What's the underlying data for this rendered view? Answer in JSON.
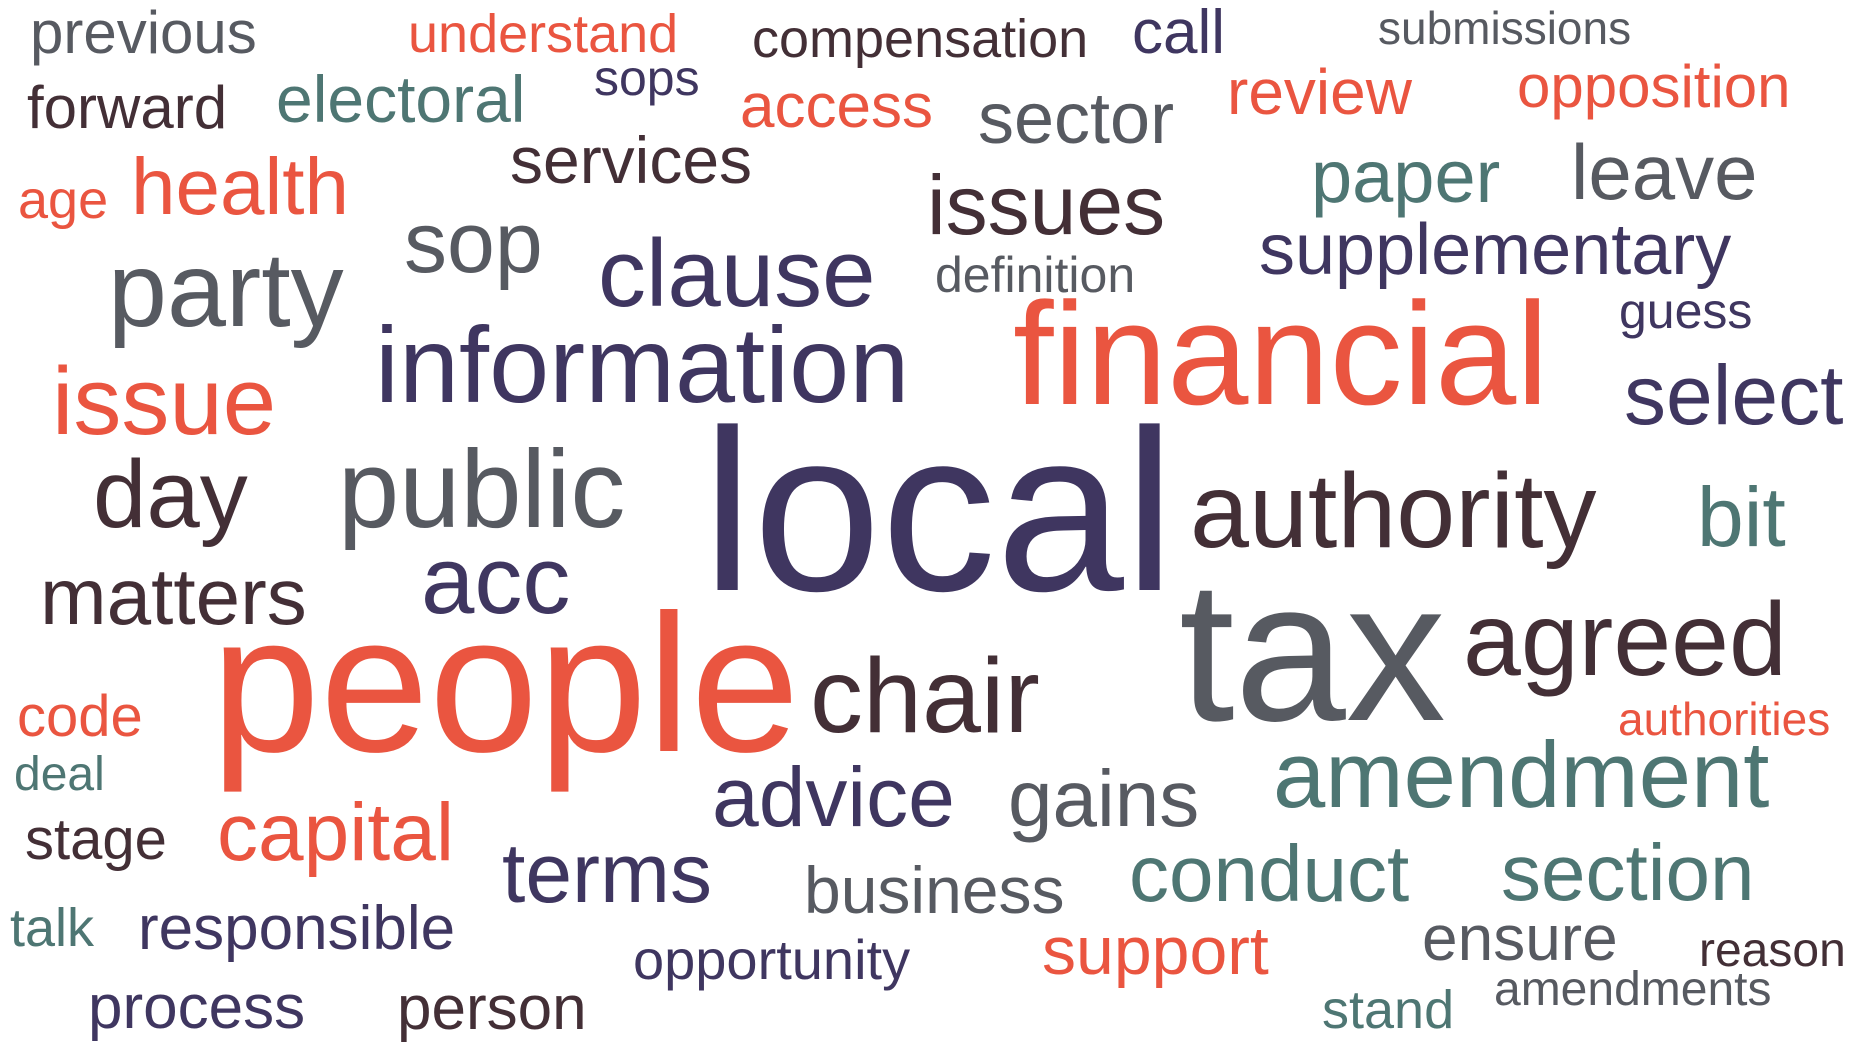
{
  "palette": {
    "coral": "#ea5540",
    "purple": "#3f3660",
    "gray": "#575a61",
    "maroon": "#432f36",
    "teal": "#4e7673"
  },
  "words": [
    {
      "text": "previous",
      "color": "gray"
    },
    {
      "text": "understand",
      "color": "coral"
    },
    {
      "text": "compensation",
      "color": "maroon"
    },
    {
      "text": "call",
      "color": "purple"
    },
    {
      "text": "submissions",
      "color": "gray"
    },
    {
      "text": "forward",
      "color": "maroon"
    },
    {
      "text": "electoral",
      "color": "teal"
    },
    {
      "text": "sops",
      "color": "purple"
    },
    {
      "text": "access",
      "color": "coral"
    },
    {
      "text": "sector",
      "color": "gray"
    },
    {
      "text": "review",
      "color": "coral"
    },
    {
      "text": "opposition",
      "color": "coral"
    },
    {
      "text": "age",
      "color": "coral"
    },
    {
      "text": "health",
      "color": "coral"
    },
    {
      "text": "services",
      "color": "maroon"
    },
    {
      "text": "issues",
      "color": "maroon"
    },
    {
      "text": "paper",
      "color": "teal"
    },
    {
      "text": "leave",
      "color": "gray"
    },
    {
      "text": "party",
      "color": "gray"
    },
    {
      "text": "sop",
      "color": "gray"
    },
    {
      "text": "clause",
      "color": "purple"
    },
    {
      "text": "definition",
      "color": "gray"
    },
    {
      "text": "supplementary",
      "color": "purple"
    },
    {
      "text": "guess",
      "color": "purple"
    },
    {
      "text": "information",
      "color": "purple"
    },
    {
      "text": "financial",
      "color": "coral"
    },
    {
      "text": "issue",
      "color": "coral"
    },
    {
      "text": "select",
      "color": "purple"
    },
    {
      "text": "day",
      "color": "maroon"
    },
    {
      "text": "public",
      "color": "gray"
    },
    {
      "text": "local",
      "color": "purple"
    },
    {
      "text": "authority",
      "color": "maroon"
    },
    {
      "text": "bit",
      "color": "teal"
    },
    {
      "text": "matters",
      "color": "maroon"
    },
    {
      "text": "acc",
      "color": "purple"
    },
    {
      "text": "tax",
      "color": "gray"
    },
    {
      "text": "agreed",
      "color": "maroon"
    },
    {
      "text": "people",
      "color": "coral"
    },
    {
      "text": "chair",
      "color": "maroon"
    },
    {
      "text": "code",
      "color": "coral"
    },
    {
      "text": "authorities",
      "color": "coral"
    },
    {
      "text": "deal",
      "color": "teal"
    },
    {
      "text": "amendment",
      "color": "teal"
    },
    {
      "text": "advice",
      "color": "purple"
    },
    {
      "text": "gains",
      "color": "gray"
    },
    {
      "text": "stage",
      "color": "maroon"
    },
    {
      "text": "capital",
      "color": "coral"
    },
    {
      "text": "terms",
      "color": "purple"
    },
    {
      "text": "business",
      "color": "gray"
    },
    {
      "text": "conduct",
      "color": "teal"
    },
    {
      "text": "section",
      "color": "teal"
    },
    {
      "text": "talk",
      "color": "teal"
    },
    {
      "text": "responsible",
      "color": "purple"
    },
    {
      "text": "ensure",
      "color": "gray"
    },
    {
      "text": "reason",
      "color": "maroon"
    },
    {
      "text": "opportunity",
      "color": "purple"
    },
    {
      "text": "support",
      "color": "coral"
    },
    {
      "text": "process",
      "color": "purple"
    },
    {
      "text": "person",
      "color": "maroon"
    },
    {
      "text": "stand",
      "color": "teal"
    },
    {
      "text": "amendments",
      "color": "gray"
    }
  ]
}
